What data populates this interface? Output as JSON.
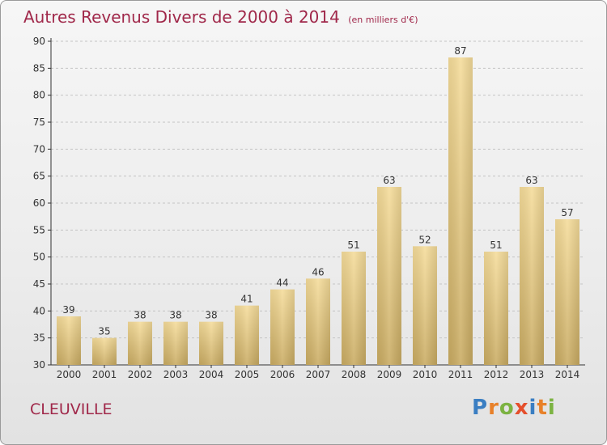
{
  "header": {
    "title": "Autres Revenus Divers de 2000 à 2014",
    "unit": "(en milliers d'€)"
  },
  "commune": "CLEUVILLE",
  "logo": {
    "p": "P",
    "r": "r",
    "o": "o",
    "x": "x",
    "i1": "i",
    "t": "t",
    "i2": "i"
  },
  "colors": {
    "title": "#a0284a",
    "bar_light": "#f5dc9a",
    "bar_dark": "#c9ab62",
    "axis": "#333333"
  },
  "chart_data": {
    "type": "bar",
    "categories": [
      "2000",
      "2001",
      "2002",
      "2003",
      "2004",
      "2005",
      "2006",
      "2007",
      "2008",
      "2009",
      "2010",
      "2011",
      "2012",
      "2013",
      "2014"
    ],
    "values": [
      39,
      35,
      38,
      38,
      38,
      41,
      44,
      46,
      51,
      63,
      52,
      87,
      51,
      63,
      57
    ],
    "ylim": [
      30,
      90
    ],
    "yticks": [
      30,
      35,
      40,
      45,
      50,
      55,
      60,
      65,
      70,
      75,
      80,
      85,
      90
    ],
    "grid": "horizontal-dashed",
    "legend": "none"
  }
}
